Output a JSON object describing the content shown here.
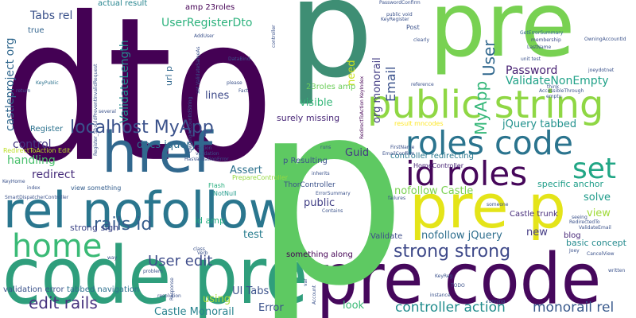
{
  "words": [
    {
      "text": "dto",
      "color": "#440154"
    },
    {
      "text": "p",
      "color": "#3e8e74"
    },
    {
      "text": "pre",
      "color": "#78d152"
    },
    {
      "text": "code pre",
      "color": "#2f9e7c"
    },
    {
      "text": "pre code",
      "color": "#46085c"
    },
    {
      "text": "pre p",
      "color": "#e4e419"
    },
    {
      "text": "href",
      "color": "#31688e"
    },
    {
      "text": "rel nofollow",
      "color": "#2a768e"
    },
    {
      "text": "public string",
      "color": "#8fd744"
    },
    {
      "text": "p",
      "color": "#5ec962"
    },
    {
      "text": "roles code",
      "color": "#2b748e"
    },
    {
      "text": "id roles",
      "color": "#46075a"
    },
    {
      "text": "set",
      "color": "#21a685"
    },
    {
      "text": "home",
      "color": "#3aba76"
    },
    {
      "text": "strong strong",
      "color": "#3e4989"
    },
    {
      "text": "localhost MyApp",
      "color": "#3b528b"
    },
    {
      "text": "rails id",
      "color": "#365d8d"
    },
    {
      "text": "User edit",
      "color": "#3e4c8a"
    },
    {
      "text": "edit rails",
      "color": "#46327e"
    },
    {
      "text": "controller action",
      "color": "#228d8d"
    },
    {
      "text": "monorail rel",
      "color": "#38598c"
    },
    {
      "text": "MyApp",
      "color": "#35b779"
    },
    {
      "text": "User",
      "color": "#31688e"
    },
    {
      "text": "Email",
      "color": "#3b528b"
    },
    {
      "text": "Password",
      "color": "#482173"
    },
    {
      "text": "ValidateNonEmpty",
      "color": "#1fa187"
    },
    {
      "text": "UserRegisterDto",
      "color": "#2db27d"
    },
    {
      "text": "ValidateLength",
      "color": "#228c8d"
    },
    {
      "text": "Tabs rel",
      "color": "#3b528b"
    },
    {
      "text": "castleproject org",
      "color": "#31688e"
    },
    {
      "text": "docs jquery",
      "color": "#2e6e8e"
    },
    {
      "text": "control",
      "color": "#453781"
    },
    {
      "text": "handling",
      "color": "#4ac16d"
    },
    {
      "text": "redirect",
      "color": "#472d7b"
    },
    {
      "text": "Assert",
      "color": "#2c728e"
    },
    {
      "text": "test",
      "color": "#287c8e"
    },
    {
      "text": "view",
      "color": "#a0da39"
    },
    {
      "text": "solve",
      "color": "#1e9b8a"
    },
    {
      "text": "new",
      "color": "#443b84"
    },
    {
      "text": "visible",
      "color": "#35b779"
    },
    {
      "text": "Guid",
      "color": "#443983"
    },
    {
      "text": "public",
      "color": "#424086"
    },
    {
      "text": "need",
      "color": "#cae11f"
    },
    {
      "text": "look",
      "color": "#3aba76"
    },
    {
      "text": "Error",
      "color": "#3b528b"
    },
    {
      "text": "using",
      "color": "#a5db36"
    },
    {
      "text": "UI Tabs",
      "color": "#3b528b"
    },
    {
      "text": "Castle Monorail",
      "color": "#26828e"
    },
    {
      "text": "jQuery tabbed",
      "color": "#21918c"
    },
    {
      "text": "nofollow Castle",
      "color": "#7ad151"
    },
    {
      "text": "nofollow jQuery",
      "color": "#2e6e8e"
    },
    {
      "text": "lines",
      "color": "#3e4a89"
    },
    {
      "text": "org monorail",
      "color": "#433d84"
    },
    {
      "text": "url p",
      "color": "#31688e"
    },
    {
      "text": "id amp",
      "color": "#25ab82"
    },
    {
      "text": "surely missing",
      "color": "#482677"
    },
    {
      "text": "specific anchor",
      "color": "#1f9e89"
    },
    {
      "text": "basic concept",
      "color": "#238a8d"
    },
    {
      "text": "strong sign",
      "color": "#3f4788"
    },
    {
      "text": "tabbed navigation",
      "color": "#2d708e"
    },
    {
      "text": "validation error",
      "color": "#3b528b"
    },
    {
      "text": "something along",
      "color": "#440154"
    },
    {
      "text": "Validate",
      "color": "#3e4c8a"
    },
    {
      "text": "Castle trunk",
      "color": "#472d7b"
    },
    {
      "text": "blog",
      "color": "#482878"
    },
    {
      "text": "Register",
      "color": "#2c728e"
    },
    {
      "text": "true",
      "color": "#32648e"
    },
    {
      "text": "actual result",
      "color": "#25848e"
    },
    {
      "text": "amp 23roles",
      "color": "#440154"
    },
    {
      "text": "23roles amp",
      "color": "#6ccd5a"
    },
    {
      "text": "controller redirecting",
      "color": "#2a788e"
    },
    {
      "text": "p Resulting",
      "color": "#3b528b"
    },
    {
      "text": "ThorController",
      "color": "#3b528b"
    },
    {
      "text": "HomeController",
      "color": "#482475"
    },
    {
      "text": "PrepareController",
      "color": "#95d840"
    },
    {
      "text": "RedirectToAction Edit",
      "color": "#bddf26"
    },
    {
      "text": "view something",
      "color": "#355e8d"
    },
    {
      "text": "result mncodes",
      "color": "#fde725"
    },
    {
      "text": "Flash",
      "color": "#29af7f"
    },
    {
      "text": "NotNull",
      "color": "#1f9a8a"
    },
    {
      "text": "Post",
      "color": "#3b528b"
    },
    {
      "text": "KeyPublic",
      "color": "#2c728e"
    },
    {
      "text": "PasswordConfirm",
      "color": "#3b528b"
    },
    {
      "text": "public void",
      "color": "#3b528b"
    },
    {
      "text": "GetErrorSummary",
      "color": "#31688e"
    },
    {
      "text": "OwningAccountId",
      "color": "#3b528b"
    },
    {
      "text": "membership",
      "color": "#3e4a89"
    },
    {
      "text": "LastName",
      "color": "#3b528b"
    },
    {
      "text": "unit test",
      "color": "#3b528b"
    },
    {
      "text": "think",
      "color": "#3b528b"
    },
    {
      "text": "ValidateEmail",
      "color": "#3b528b"
    },
    {
      "text": "CancelView",
      "color": "#3b528b"
    },
    {
      "text": "running",
      "color": "#3b528b"
    },
    {
      "text": "Account",
      "color": "#3b528b"
    },
    {
      "text": "instance",
      "color": "#3b528b"
    },
    {
      "text": "TODO",
      "color": "#3b528b"
    },
    {
      "text": "KeyReg",
      "color": "#3b528b"
    },
    {
      "text": "Contains",
      "color": "#3b528b"
    },
    {
      "text": "ErrorSummary",
      "color": "#3b528b"
    },
    {
      "text": "inherits",
      "color": "#3b528b"
    },
    {
      "text": "EmailConfirm",
      "color": "#3b528b"
    },
    {
      "text": "FirstName",
      "color": "#3b528b"
    },
    {
      "text": "runs",
      "color": "#3b528b"
    },
    {
      "text": "failures",
      "color": "#3b528b"
    },
    {
      "text": "someone",
      "color": "#3b528b"
    },
    {
      "text": "seeing",
      "color": "#3b528b"
    },
    {
      "text": "RedirectedTo",
      "color": "#3b528b"
    },
    {
      "text": "Joey",
      "color": "#3b528b"
    },
    {
      "text": "written",
      "color": "#3b528b"
    },
    {
      "text": "joeydotnet",
      "color": "#3b528b"
    },
    {
      "text": "KeyRegister",
      "color": "#3b528b"
    },
    {
      "text": "clearly",
      "color": "#3b528b"
    },
    {
      "text": "reference",
      "color": "#3b528b"
    },
    {
      "text": "AccessibleThrough",
      "color": "#3b528b"
    },
    {
      "text": "empty",
      "color": "#3b528b"
    },
    {
      "text": "RedirectToAction KeyIndex",
      "color": "#440154"
    },
    {
      "text": "SmartDispatcherController",
      "color": "#3b528b"
    },
    {
      "text": "HasValidationError",
      "color": "#3b528b"
    },
    {
      "text": "validation",
      "color": "#3b528b"
    },
    {
      "text": "action",
      "color": "#3b528b"
    },
    {
      "text": "Response",
      "color": "#3b528b"
    },
    {
      "text": "resolution",
      "color": "#3b528b"
    },
    {
      "text": "class",
      "color": "#3b528b"
    },
    {
      "text": "Verb",
      "color": "#3b528b"
    },
    {
      "text": "problem",
      "color": "#3b528b"
    },
    {
      "text": "way",
      "color": "#3b528b"
    },
    {
      "text": "several",
      "color": "#3b528b"
    },
    {
      "text": "please",
      "color": "#3b528b"
    },
    {
      "text": "Fact",
      "color": "#3b528b"
    },
    {
      "text": "DataBind",
      "color": "#3b528b"
    },
    {
      "text": "AddUser",
      "color": "#3b528b"
    },
    {
      "text": "Register_ShouldPreventInvalidRequest",
      "color": "#3b528b"
    },
    {
      "text": "OwningAccountIdString",
      "color": "#3b528b"
    },
    {
      "text": "set ValidateSameAs",
      "color": "#3b528b"
    },
    {
      "text": "controller",
      "color": "#3b528b"
    },
    {
      "text": "return",
      "color": "#3b528b"
    },
    {
      "text": "KeyHome",
      "color": "#3b528b"
    },
    {
      "text": "index",
      "color": "#3b528b"
    },
    {
      "text": "var",
      "color": "#3b528b"
    }
  ]
}
